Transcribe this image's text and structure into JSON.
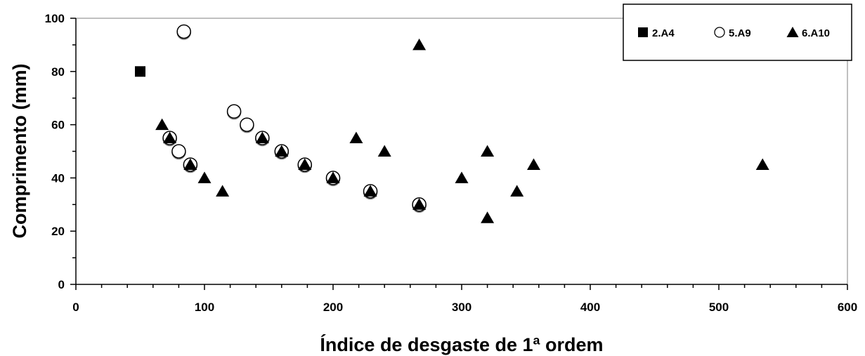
{
  "chart_data": {
    "type": "scatter",
    "xlabel": "Índice de desgaste de 1ª ordem",
    "ylabel": "Comprimento (mm)",
    "xlim": [
      0,
      600
    ],
    "ylim": [
      0,
      100
    ],
    "x_ticks": [
      0,
      100,
      200,
      300,
      400,
      500,
      600
    ],
    "y_ticks": [
      0,
      20,
      40,
      60,
      80,
      100
    ],
    "grid": false,
    "legend_position": "top-right",
    "series": [
      {
        "name": "2.A4",
        "marker": "square-filled",
        "color": "#000000",
        "points": [
          [
            50,
            80
          ]
        ]
      },
      {
        "name": "5.A9",
        "marker": "circle-open",
        "color": "#000000",
        "points": [
          [
            84,
            95
          ],
          [
            73,
            55
          ],
          [
            80,
            50
          ],
          [
            89,
            45
          ],
          [
            123,
            65
          ],
          [
            133,
            60
          ],
          [
            145,
            55
          ],
          [
            160,
            50
          ],
          [
            178,
            45
          ],
          [
            200,
            40
          ],
          [
            229,
            35
          ],
          [
            267,
            30
          ]
        ]
      },
      {
        "name": "6.A10",
        "marker": "triangle-filled",
        "color": "#000000",
        "points": [
          [
            67,
            60
          ],
          [
            73,
            55
          ],
          [
            89,
            45
          ],
          [
            100,
            40
          ],
          [
            114,
            35
          ],
          [
            145,
            55
          ],
          [
            160,
            50
          ],
          [
            178,
            45
          ],
          [
            200,
            40
          ],
          [
            218,
            55
          ],
          [
            229,
            35
          ],
          [
            240,
            50
          ],
          [
            267,
            30
          ],
          [
            267,
            90
          ],
          [
            300,
            40
          ],
          [
            320,
            50
          ],
          [
            320,
            25
          ],
          [
            343,
            35
          ],
          [
            356,
            45
          ],
          [
            534,
            45
          ]
        ]
      }
    ]
  }
}
